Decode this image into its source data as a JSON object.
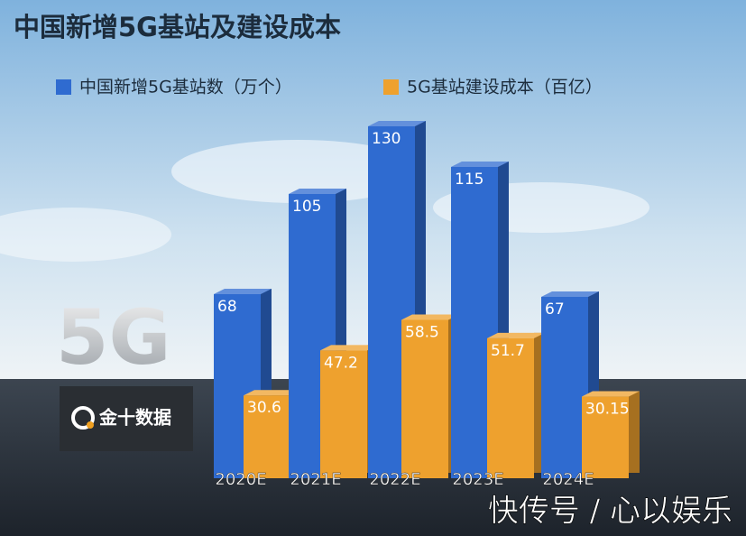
{
  "chart_data": {
    "type": "bar3d",
    "title": "中国新增5G基站及建设成本",
    "categories": [
      "2020E",
      "2021E",
      "2022E",
      "2023E",
      "2024E"
    ],
    "series": [
      {
        "name": "中国新增5G基站数（万个）",
        "color": "#2f6bd0",
        "values": [
          68,
          105,
          130,
          115,
          67
        ]
      },
      {
        "name": "5G基站建设成本（百亿）",
        "color": "#eea12e",
        "values": [
          30.6,
          47.2,
          58.5,
          51.7,
          30.15
        ]
      }
    ],
    "badge": "5G",
    "logo": "金十数据",
    "watermark": "快传号 / 心以娱乐"
  }
}
